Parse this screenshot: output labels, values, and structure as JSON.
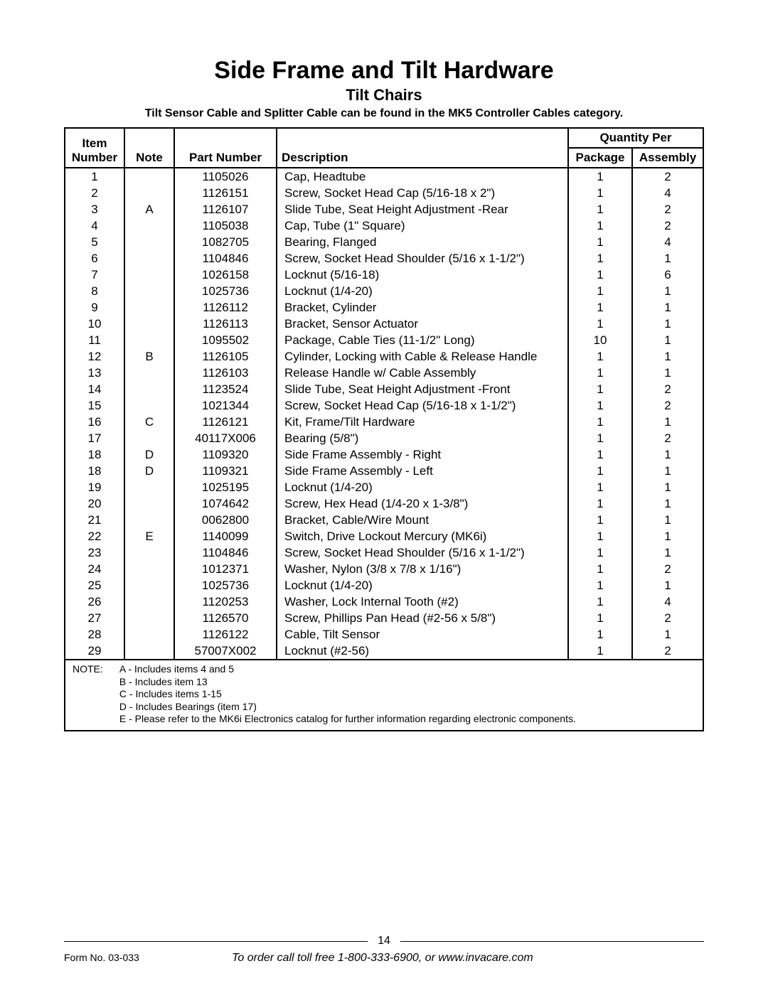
{
  "header": {
    "title": "Side Frame and Tilt Hardware",
    "subtitle": "Tilt Chairs",
    "note": "Tilt Sensor Cable and Splitter Cable can be found in the MK5 Controller Cables category."
  },
  "table": {
    "columns": {
      "item_top": "Item",
      "item": "Number",
      "note": "Note",
      "part": "Part Number",
      "desc": "Description",
      "qty_per": "Quantity Per",
      "pkg": "Package",
      "asm": "Assembly"
    },
    "rows": [
      {
        "item": "1",
        "note": "",
        "part": "1105026",
        "desc": "Cap, Headtube",
        "pkg": "1",
        "asm": "2"
      },
      {
        "item": "2",
        "note": "",
        "part": "1126151",
        "desc": "Screw, Socket Head Cap (5/16-18 x 2\")",
        "pkg": "1",
        "asm": "4"
      },
      {
        "item": "3",
        "note": "A",
        "part": "1126107",
        "desc": "Slide Tube, Seat Height Adjustment -Rear",
        "pkg": "1",
        "asm": "2"
      },
      {
        "item": "4",
        "note": "",
        "part": "1105038",
        "desc": "Cap, Tube (1\" Square)",
        "pkg": "1",
        "asm": "2"
      },
      {
        "item": "5",
        "note": "",
        "part": "1082705",
        "desc": "Bearing, Flanged",
        "pkg": "1",
        "asm": "4"
      },
      {
        "item": "6",
        "note": "",
        "part": "1104846",
        "desc": "Screw, Socket Head Shoulder (5/16 x 1-1/2\")",
        "pkg": "1",
        "asm": "1"
      },
      {
        "item": "7",
        "note": "",
        "part": "1026158",
        "desc": "Locknut (5/16-18)",
        "pkg": "1",
        "asm": "6"
      },
      {
        "item": "8",
        "note": "",
        "part": "1025736",
        "desc": "Locknut (1/4-20)",
        "pkg": "1",
        "asm": "1"
      },
      {
        "item": "9",
        "note": "",
        "part": "1126112",
        "desc": "Bracket, Cylinder",
        "pkg": "1",
        "asm": "1"
      },
      {
        "item": "10",
        "note": "",
        "part": "1126113",
        "desc": "Bracket, Sensor Actuator",
        "pkg": "1",
        "asm": "1"
      },
      {
        "item": "11",
        "note": "",
        "part": "1095502",
        "desc": "Package, Cable Ties (11-1/2\" Long)",
        "pkg": "10",
        "asm": "1"
      },
      {
        "item": "12",
        "note": "B",
        "part": "1126105",
        "desc": "Cylinder, Locking with Cable & Release Handle",
        "pkg": "1",
        "asm": "1"
      },
      {
        "item": "13",
        "note": "",
        "part": "1126103",
        "desc": "Release Handle w/ Cable Assembly",
        "pkg": "1",
        "asm": "1"
      },
      {
        "item": "14",
        "note": "",
        "part": "1123524",
        "desc": "Slide Tube, Seat Height Adjustment -Front",
        "pkg": "1",
        "asm": "2"
      },
      {
        "item": "15",
        "note": "",
        "part": "1021344",
        "desc": "Screw, Socket Head Cap (5/16-18 x 1-1/2\")",
        "pkg": "1",
        "asm": "2"
      },
      {
        "item": "16",
        "note": "C",
        "part": "1126121",
        "desc": "Kit, Frame/Tilt Hardware",
        "pkg": "1",
        "asm": "1"
      },
      {
        "item": "17",
        "note": "",
        "part": "40117X006",
        "desc": "Bearing (5/8\")",
        "pkg": "1",
        "asm": "2"
      },
      {
        "item": "18",
        "note": "D",
        "part": "1109320",
        "desc": "Side Frame Assembly - Right",
        "pkg": "1",
        "asm": "1"
      },
      {
        "item": "18",
        "note": "D",
        "part": "1109321",
        "desc": "Side Frame Assembly - Left",
        "pkg": "1",
        "asm": "1"
      },
      {
        "item": "19",
        "note": "",
        "part": "1025195",
        "desc": "Locknut (1/4-20)",
        "pkg": "1",
        "asm": "1"
      },
      {
        "item": "20",
        "note": "",
        "part": "1074642",
        "desc": "Screw, Hex Head (1/4-20 x 1-3/8\")",
        "pkg": "1",
        "asm": "1"
      },
      {
        "item": "21",
        "note": "",
        "part": "0062800",
        "desc": "Bracket, Cable/Wire Mount",
        "pkg": "1",
        "asm": "1"
      },
      {
        "item": "22",
        "note": "E",
        "part": "1140099",
        "desc": "Switch, Drive Lockout Mercury (MK6i)",
        "pkg": "1",
        "asm": "1"
      },
      {
        "item": "23",
        "note": "",
        "part": "1104846",
        "desc": "Screw, Socket Head Shoulder (5/16 x 1-1/2\")",
        "pkg": "1",
        "asm": "1"
      },
      {
        "item": "24",
        "note": "",
        "part": "1012371",
        "desc": "Washer, Nylon (3/8 x 7/8 x 1/16\")",
        "pkg": "1",
        "asm": "2"
      },
      {
        "item": "25",
        "note": "",
        "part": "1025736",
        "desc": "Locknut (1/4-20)",
        "pkg": "1",
        "asm": "1"
      },
      {
        "item": "26",
        "note": "",
        "part": "1120253",
        "desc": "Washer, Lock Internal Tooth (#2)",
        "pkg": "1",
        "asm": "4"
      },
      {
        "item": "27",
        "note": "",
        "part": "1126570",
        "desc": "Screw, Phillips Pan Head (#2-56 x 5/8\")",
        "pkg": "1",
        "asm": "2"
      },
      {
        "item": "28",
        "note": "",
        "part": "1126122",
        "desc": "Cable, Tilt Sensor",
        "pkg": "1",
        "asm": "1"
      },
      {
        "item": "29",
        "note": "",
        "part": "57007X002",
        "desc": "Locknut (#2-56)",
        "pkg": "1",
        "asm": "2"
      }
    ],
    "notes_label": "NOTE:",
    "note_lines": [
      "A - Includes items 4 and 5",
      "B - Includes item 13",
      "C - Includes items 1-15",
      "D - Includes Bearings (item 17)",
      "E - Please refer to the MK6i Electronics catalog for further information regarding electronic components."
    ]
  },
  "footer": {
    "page_number": "14",
    "form_no": "Form No. 03-033",
    "order_line": "To order call toll free 1-800-333-6900, or www.invacare.com"
  },
  "styling": {
    "title_fontsize": 34,
    "subtitle_fontsize": 22,
    "body_fontsize": 17,
    "notes_fontsize": 14,
    "border_color": "#000000",
    "background_color": "#ffffff"
  }
}
